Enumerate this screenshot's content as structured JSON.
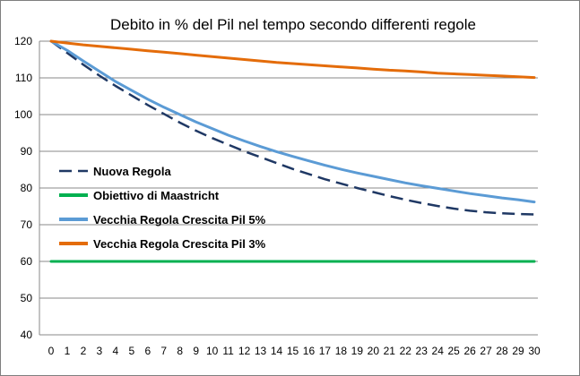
{
  "chart_data": {
    "type": "line",
    "title": "Debito in % del Pil nel tempo secondo differenti regole",
    "xlabel": "",
    "ylabel": "",
    "x": [
      0,
      1,
      2,
      3,
      4,
      5,
      6,
      7,
      8,
      9,
      10,
      11,
      12,
      13,
      14,
      15,
      16,
      17,
      18,
      19,
      20,
      21,
      22,
      23,
      24,
      25,
      26,
      27,
      28,
      29,
      30
    ],
    "xlim": [
      0,
      30
    ],
    "ylim": [
      40,
      120
    ],
    "yticks": [
      40,
      50,
      60,
      70,
      80,
      90,
      100,
      110,
      120
    ],
    "grid": "horizontal",
    "legend_position": "left-center",
    "series": [
      {
        "name": "Nuova Regola",
        "color": "#1f3864",
        "style": "dashed",
        "values": [
          120,
          116.8,
          113.6,
          110.6,
          107.8,
          105.2,
          102.6,
          100.2,
          97.8,
          95.6,
          93.6,
          91.8,
          90.0,
          88.4,
          86.8,
          85.2,
          83.8,
          82.4,
          81.2,
          80.0,
          78.9,
          77.8,
          76.8,
          75.9,
          75.1,
          74.4,
          73.8,
          73.4,
          73.1,
          72.9,
          72.8
        ]
      },
      {
        "name": "Obiettivo di Maastricht",
        "color": "#00b050",
        "style": "solid",
        "values": [
          60,
          60,
          60,
          60,
          60,
          60,
          60,
          60,
          60,
          60,
          60,
          60,
          60,
          60,
          60,
          60,
          60,
          60,
          60,
          60,
          60,
          60,
          60,
          60,
          60,
          60,
          60,
          60,
          60,
          60,
          60
        ]
      },
      {
        "name": "Vecchia Regola Crescita Pil 5%",
        "color": "#5b9bd5",
        "style": "solid",
        "values": [
          120,
          117.5,
          114.6,
          111.8,
          109.0,
          106.6,
          104.2,
          102.0,
          100.0,
          98.0,
          96.2,
          94.4,
          92.8,
          91.3,
          89.9,
          88.6,
          87.4,
          86.2,
          85.1,
          84.1,
          83.2,
          82.3,
          81.4,
          80.6,
          79.9,
          79.2,
          78.5,
          77.9,
          77.3,
          76.8,
          76.2
        ]
      },
      {
        "name": "Vecchia Regola Crescita Pil 3%",
        "color": "#e46c0a",
        "style": "solid",
        "values": [
          120,
          119.5,
          119.0,
          118.6,
          118.2,
          117.8,
          117.4,
          117.0,
          116.6,
          116.2,
          115.8,
          115.4,
          115.0,
          114.6,
          114.2,
          113.9,
          113.6,
          113.3,
          113.0,
          112.7,
          112.4,
          112.1,
          111.9,
          111.6,
          111.3,
          111.1,
          110.9,
          110.7,
          110.5,
          110.3,
          110.1
        ]
      }
    ]
  }
}
